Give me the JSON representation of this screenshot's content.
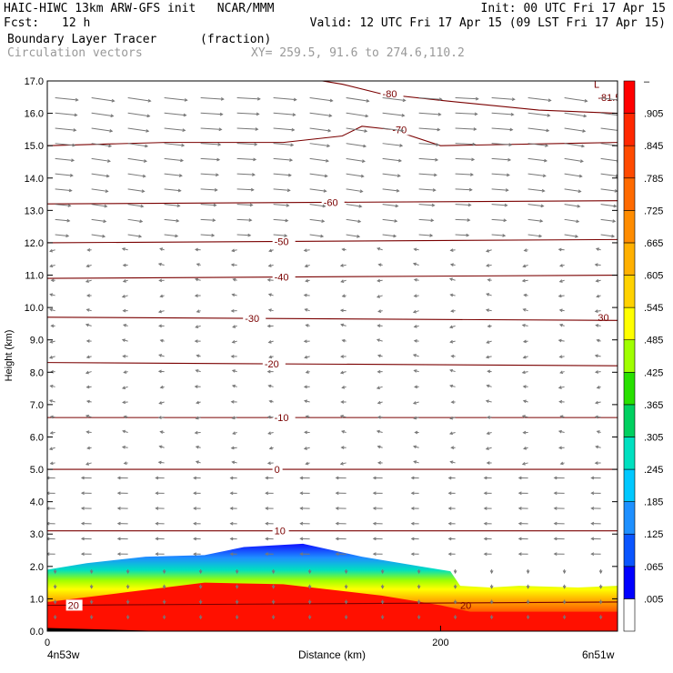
{
  "header": {
    "title": "HAIC-HIWC 13km ARW-GFS init   NCAR/MMM",
    "init": "Init: 00 UTC Fri 17 Apr 15",
    "fcst_label": "Fcst:",
    "fcst_value": "12 h",
    "valid": "Valid: 12 UTC Fri 17 Apr 15 (09 LST Fri 17 Apr 15)",
    "field": "Boundary Layer Tracer",
    "field_units": "(fraction)",
    "vectors": "Circulation vectors",
    "xy": "XY= 259.5, 91.6 to 274.6,110.2"
  },
  "colors": {
    "contour": "#7a0000",
    "vector": "#777777",
    "colorbar": [
      "#ffffff",
      "#0000ff",
      "#0a55ff",
      "#1e90ff",
      "#00c8ff",
      "#00e0c0",
      "#00d060",
      "#28e000",
      "#a0ff00",
      "#ffff00",
      "#ffd200",
      "#ffb000",
      "#ff8c00",
      "#ff6a00",
      "#ff4a00",
      "#ff2800",
      "#ff0000"
    ]
  },
  "chart_data": {
    "type": "heatmap",
    "title": "Boundary Layer Tracer",
    "xlabel": "Distance (km)",
    "ylabel": "Height (km)",
    "xlim": [
      0,
      290
    ],
    "ylim": [
      0,
      17
    ],
    "xticks": [
      0,
      200
    ],
    "xtick_labels": [
      "0",
      "200"
    ],
    "x_left_label": "4n53w",
    "x_right_label": "6n51w",
    "yticks": [
      0,
      1,
      2,
      3,
      4,
      5,
      6,
      7,
      8,
      9,
      10,
      11,
      12,
      13,
      14,
      15,
      16,
      17
    ],
    "ytick_labels": [
      "0.0",
      "1.0",
      "2.0",
      "3.0",
      "4.0",
      "5.0",
      "6.0",
      "7.0",
      "8.0",
      "9.0",
      "10.0",
      "11.0",
      "12.0",
      "13.0",
      "14.0",
      "15.0",
      "16.0",
      "17.0"
    ],
    "colorbar_labels": [
      "–",
      ".905",
      ".845",
      ".785",
      ".725",
      ".665",
      ".605",
      ".545",
      ".485",
      ".425",
      ".365",
      ".305",
      ".245",
      ".185",
      ".125",
      ".065",
      ".005"
    ],
    "tracer_top": {
      "x": [
        0,
        20,
        50,
        80,
        100,
        130,
        160,
        190,
        205,
        210,
        225,
        240,
        270,
        290
      ],
      "km": [
        1.9,
        2.1,
        2.3,
        2.35,
        2.6,
        2.7,
        2.3,
        2.0,
        1.85,
        1.4,
        1.35,
        1.4,
        1.35,
        1.4
      ]
    },
    "temperature_contours": [
      {
        "label": "-80",
        "label_x": 170,
        "x": [
          130,
          150,
          170,
          200,
          250,
          290
        ],
        "km": [
          17.1,
          16.9,
          16.6,
          16.4,
          16.1,
          16.0
        ]
      },
      {
        "label": "-70",
        "label_x": 175,
        "x": [
          0,
          60,
          120,
          150,
          160,
          175,
          200,
          290
        ],
        "km": [
          15.0,
          15.1,
          15.1,
          15.3,
          15.6,
          15.5,
          15.0,
          15.1
        ]
      },
      {
        "label": "-60",
        "label_x": 140,
        "x": [
          0,
          290
        ],
        "km": [
          13.2,
          13.3
        ]
      },
      {
        "label": "-50",
        "label_x": 115,
        "x": [
          0,
          290
        ],
        "km": [
          12.0,
          12.1
        ]
      },
      {
        "label": "-40",
        "label_x": 115,
        "x": [
          0,
          290
        ],
        "km": [
          10.9,
          11.0
        ]
      },
      {
        "label": "-30",
        "label_x": 100,
        "x": [
          0,
          290
        ],
        "km": [
          9.7,
          9.6
        ]
      },
      {
        "label": "-20",
        "label_x": 110,
        "x": [
          0,
          290
        ],
        "km": [
          8.3,
          8.2
        ]
      },
      {
        "label": "-10",
        "label_x": 115,
        "x": [
          0,
          290
        ],
        "km": [
          6.6,
          6.6
        ]
      },
      {
        "label": "0",
        "label_x": 115,
        "x": [
          0,
          290
        ],
        "km": [
          5.0,
          5.0
        ]
      },
      {
        "label": "10",
        "label_x": 115,
        "x": [
          0,
          290
        ],
        "km": [
          3.1,
          3.1
        ]
      },
      {
        "label": "20",
        "label_x": 10,
        "x": [
          0,
          290
        ],
        "km": [
          0.8,
          0.9
        ]
      }
    ],
    "extra_contour_labels": [
      {
        "label": "30",
        "x": 280,
        "km": 9.7
      },
      {
        "label": "-81.5",
        "x": 280,
        "km": 16.5
      },
      {
        "label": "L",
        "x": 278,
        "km": 16.9
      },
      {
        "label": "20",
        "x": 210,
        "km": 0.8
      }
    ]
  }
}
